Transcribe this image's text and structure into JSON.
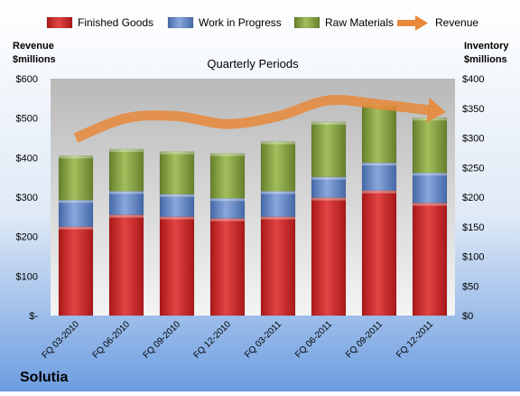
{
  "company": "Solutia",
  "chart_data": {
    "type": "bar",
    "title": "Quarterly Periods",
    "categories": [
      "FQ 03-2010",
      "FQ 06-2010",
      "FQ 09-2010",
      "FQ 12-2010",
      "FQ 03-2011",
      "FQ 06-2011",
      "FQ 09-2011",
      "FQ 12-2011"
    ],
    "series": [
      {
        "name": "Finished Goods",
        "axis": "right",
        "stacked": true,
        "color": "#cc2a2a",
        "values": [
          150,
          170,
          167,
          164,
          167,
          199,
          211,
          190
        ]
      },
      {
        "name": "Work in Progress",
        "axis": "right",
        "stacked": true,
        "color": "#5b7fbf",
        "values": [
          45,
          40,
          38,
          34,
          43,
          35,
          47,
          51
        ]
      },
      {
        "name": "Raw Materials",
        "axis": "right",
        "stacked": true,
        "color": "#7e9c3c",
        "values": [
          75,
          71,
          72,
          76,
          84,
          93,
          100,
          93
        ]
      },
      {
        "name": "Revenue",
        "type": "line",
        "axis": "left",
        "color": "#e8883a",
        "values": [
          450,
          500,
          505,
          485,
          505,
          545,
          535,
          520
        ]
      }
    ],
    "left_axis": {
      "label": [
        "Revenue",
        "$millions"
      ],
      "range": [
        0,
        600
      ],
      "ticks": [
        "$-",
        "$100",
        "$200",
        "$300",
        "$400",
        "$500",
        "$600"
      ]
    },
    "right_axis": {
      "label": [
        "Inventory",
        "$millions"
      ],
      "range": [
        0,
        400
      ],
      "ticks": [
        "$0",
        "$50",
        "$100",
        "$150",
        "$200",
        "$250",
        "$300",
        "$350",
        "$400"
      ]
    },
    "legend_position": "top",
    "grid": false
  }
}
